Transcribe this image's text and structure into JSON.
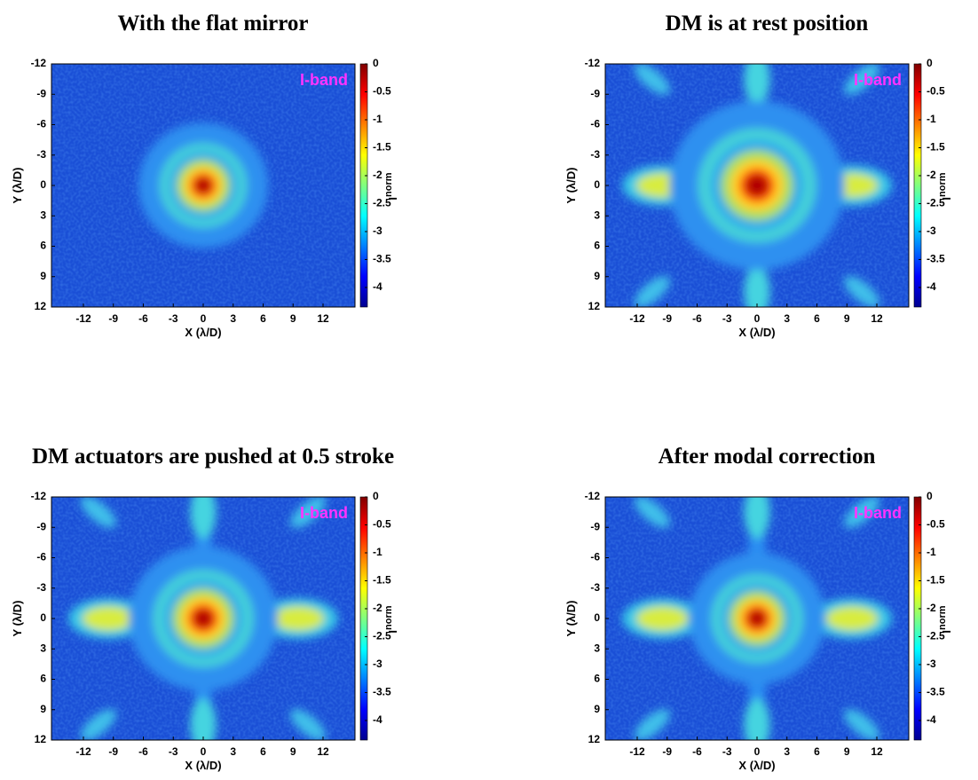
{
  "chart_data": [
    {
      "type": "heatmap",
      "title": "With the flat mirror",
      "annotation": "I-band",
      "xlabel": "X (λ/D)",
      "ylabel": "Y (λ/D)",
      "colorbar_label": "I",
      "colorbar_label_sub": "norm",
      "xlim": [
        -15.2,
        15.2
      ],
      "ylim": [
        -12,
        12
      ],
      "y_reversed": true,
      "xticks": [
        -12,
        -9,
        -6,
        -3,
        0,
        3,
        6,
        9,
        12
      ],
      "yticks": [
        -12,
        -9,
        -6,
        -3,
        0,
        3,
        6,
        9,
        12
      ],
      "clim": [
        -4.35,
        0
      ],
      "cticks": [
        0,
        -0.5,
        -1,
        -1.5,
        -2,
        -2.5,
        -3,
        -3.5,
        -4
      ],
      "colormap": "jet"
    },
    {
      "type": "heatmap",
      "title": "DM is at rest position",
      "annotation": "I-band",
      "xlabel": "X (λ/D)",
      "ylabel": "Y (λ/D)",
      "colorbar_label": "I",
      "colorbar_label_sub": "norm",
      "xlim": [
        -15.2,
        15.2
      ],
      "ylim": [
        -12,
        12
      ],
      "y_reversed": true,
      "xticks": [
        -12,
        -9,
        -6,
        -3,
        0,
        3,
        6,
        9,
        12
      ],
      "yticks": [
        -12,
        -9,
        -6,
        -3,
        0,
        3,
        6,
        9,
        12
      ],
      "clim": [
        -4.35,
        0
      ],
      "cticks": [
        0,
        -0.5,
        -1,
        -1.5,
        -2,
        -2.5,
        -3,
        -3.5,
        -4
      ],
      "colormap": "jet"
    },
    {
      "type": "heatmap",
      "title": "DM actuators are pushed at 0.5 stroke",
      "annotation": "I-band",
      "xlabel": "X (λ/D)",
      "ylabel": "Y (λ/D)",
      "colorbar_label": "I",
      "colorbar_label_sub": "norm",
      "xlim": [
        -15.2,
        15.2
      ],
      "ylim": [
        -12,
        12
      ],
      "y_reversed": true,
      "xticks": [
        -12,
        -9,
        -6,
        -3,
        0,
        3,
        6,
        9,
        12
      ],
      "yticks": [
        -12,
        -9,
        -6,
        -3,
        0,
        3,
        6,
        9,
        12
      ],
      "clim": [
        -4.35,
        0
      ],
      "cticks": [
        0,
        -0.5,
        -1,
        -1.5,
        -2,
        -2.5,
        -3,
        -3.5,
        -4
      ],
      "colormap": "jet"
    },
    {
      "type": "heatmap",
      "title": "After modal correction",
      "annotation": "I-band",
      "xlabel": "X (λ/D)",
      "ylabel": "Y (λ/D)",
      "colorbar_label": "I",
      "colorbar_label_sub": "norm",
      "xlim": [
        -15.2,
        15.2
      ],
      "ylim": [
        -12,
        12
      ],
      "y_reversed": true,
      "xticks": [
        -12,
        -9,
        -6,
        -3,
        0,
        3,
        6,
        9,
        12
      ],
      "yticks": [
        -12,
        -9,
        -6,
        -3,
        0,
        3,
        6,
        9,
        12
      ],
      "clim": [
        -4.35,
        0
      ],
      "cticks": [
        0,
        -0.5,
        -1,
        -1.5,
        -2,
        -2.5,
        -3,
        -3.5,
        -4
      ],
      "colormap": "jet"
    }
  ]
}
